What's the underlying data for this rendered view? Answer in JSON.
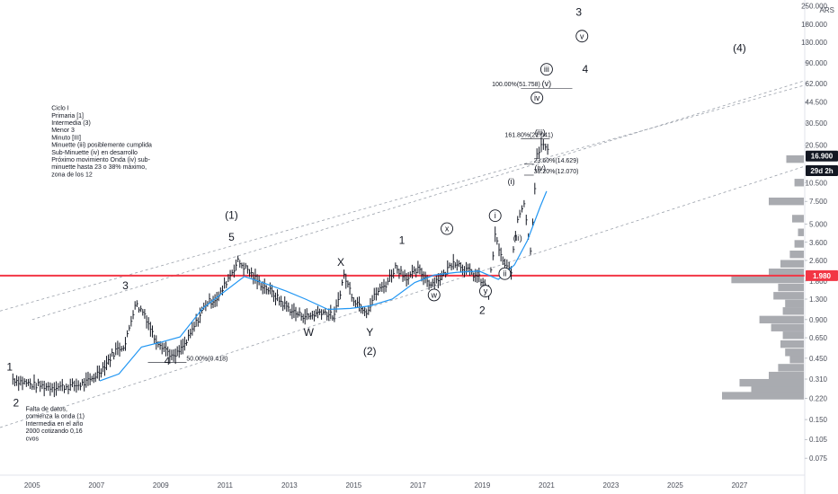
{
  "chart_data": {
    "type": "line",
    "title": "",
    "xlabel": "",
    "ylabel": "",
    "y_scale": "log",
    "xlim": [
      2004.0,
      2029.0
    ],
    "ylim": [
      0.06,
      260
    ],
    "currency": "ARS",
    "x_ticks": [
      "2005",
      "2007",
      "2009",
      "2011",
      "2013",
      "2015",
      "2017",
      "2019",
      "2021",
      "2023",
      "2025",
      "2027"
    ],
    "x_tick_values": [
      2005,
      2007,
      2009,
      2011,
      2013,
      2015,
      2017,
      2019,
      2021,
      2023,
      2025,
      2027
    ],
    "y_ticks": [
      "250.000",
      "180.000",
      "130.000",
      "90.000",
      "62.000",
      "44.500",
      "30.500",
      "20.500",
      "10.500",
      "7.500",
      "5.000",
      "3.600",
      "2.600",
      "1.800",
      "1.300",
      "0.900",
      "0.650",
      "0.450",
      "0.310",
      "0.220",
      "0.150",
      "0.105",
      "0.075"
    ],
    "y_tick_values": [
      250,
      180,
      130,
      90,
      62,
      44.5,
      30.5,
      20.5,
      10.5,
      7.5,
      5.0,
      3.6,
      2.6,
      1.8,
      1.3,
      0.9,
      0.65,
      0.45,
      0.31,
      0.22,
      0.15,
      0.105,
      0.075
    ],
    "price_badge": {
      "label": "16.900",
      "value": 16.9,
      "color": "#131722"
    },
    "countdown_badge": {
      "label": "29d 2h",
      "value": 13.0,
      "color": "#131722"
    },
    "support_line": {
      "label": "1.980",
      "value": 1.98,
      "color": "#f23645"
    },
    "moving_average": [
      {
        "x": 2007.1,
        "y": 0.3
      },
      {
        "x": 2007.7,
        "y": 0.34
      },
      {
        "x": 2008.4,
        "y": 0.55
      },
      {
        "x": 2009.0,
        "y": 0.6
      },
      {
        "x": 2009.6,
        "y": 0.66
      },
      {
        "x": 2010.3,
        "y": 1.1
      },
      {
        "x": 2011.0,
        "y": 1.5
      },
      {
        "x": 2011.6,
        "y": 1.95
      },
      {
        "x": 2012.3,
        "y": 1.7
      },
      {
        "x": 2012.9,
        "y": 1.5
      },
      {
        "x": 2013.5,
        "y": 1.3
      },
      {
        "x": 2014.2,
        "y": 1.08
      },
      {
        "x": 2014.9,
        "y": 1.1
      },
      {
        "x": 2015.5,
        "y": 1.15
      },
      {
        "x": 2016.2,
        "y": 1.3
      },
      {
        "x": 2016.9,
        "y": 1.75
      },
      {
        "x": 2017.5,
        "y": 2.0
      },
      {
        "x": 2018.2,
        "y": 2.1
      },
      {
        "x": 2018.9,
        "y": 2.15
      },
      {
        "x": 2019.5,
        "y": 1.85
      },
      {
        "x": 2020.0,
        "y": 2.4
      },
      {
        "x": 2020.4,
        "y": 3.7
      },
      {
        "x": 2020.8,
        "y": 6.8
      },
      {
        "x": 2021.0,
        "y": 9.0
      }
    ],
    "price_series": [
      {
        "x": 2004.4,
        "y": 0.31
      },
      {
        "x": 2005.0,
        "y": 0.28
      },
      {
        "x": 2005.5,
        "y": 0.27
      },
      {
        "x": 2006.0,
        "y": 0.27
      },
      {
        "x": 2006.5,
        "y": 0.28
      },
      {
        "x": 2006.8,
        "y": 0.3
      },
      {
        "x": 2007.2,
        "y": 0.38
      },
      {
        "x": 2007.6,
        "y": 0.52
      },
      {
        "x": 2007.9,
        "y": 0.58
      },
      {
        "x": 2008.2,
        "y": 1.2
      },
      {
        "x": 2008.5,
        "y": 1.0
      },
      {
        "x": 2008.8,
        "y": 0.65
      },
      {
        "x": 2009.1,
        "y": 0.55
      },
      {
        "x": 2009.4,
        "y": 0.45
      },
      {
        "x": 2009.8,
        "y": 0.6
      },
      {
        "x": 2010.1,
        "y": 0.85
      },
      {
        "x": 2010.4,
        "y": 1.2
      },
      {
        "x": 2010.8,
        "y": 1.35
      },
      {
        "x": 2011.1,
        "y": 1.9
      },
      {
        "x": 2011.4,
        "y": 2.55
      },
      {
        "x": 2011.7,
        "y": 2.2
      },
      {
        "x": 2012.0,
        "y": 1.8
      },
      {
        "x": 2012.4,
        "y": 1.5
      },
      {
        "x": 2012.8,
        "y": 1.2
      },
      {
        "x": 2013.2,
        "y": 1.0
      },
      {
        "x": 2013.6,
        "y": 0.95
      },
      {
        "x": 2014.0,
        "y": 1.05
      },
      {
        "x": 2014.4,
        "y": 0.95
      },
      {
        "x": 2014.7,
        "y": 2.0
      },
      {
        "x": 2015.0,
        "y": 1.3
      },
      {
        "x": 2015.4,
        "y": 1.05
      },
      {
        "x": 2015.7,
        "y": 1.45
      },
      {
        "x": 2016.0,
        "y": 1.7
      },
      {
        "x": 2016.3,
        "y": 2.3
      },
      {
        "x": 2016.7,
        "y": 1.9
      },
      {
        "x": 2017.0,
        "y": 2.2
      },
      {
        "x": 2017.4,
        "y": 1.7
      },
      {
        "x": 2017.8,
        "y": 2.0
      },
      {
        "x": 2018.1,
        "y": 2.6
      },
      {
        "x": 2018.5,
        "y": 2.2
      },
      {
        "x": 2018.9,
        "y": 1.9
      },
      {
        "x": 2019.2,
        "y": 1.5
      },
      {
        "x": 2019.4,
        "y": 4.0
      },
      {
        "x": 2019.7,
        "y": 2.3
      },
      {
        "x": 2019.9,
        "y": 2.2
      },
      {
        "x": 2020.1,
        "y": 5.5
      },
      {
        "x": 2020.3,
        "y": 7.5
      },
      {
        "x": 2020.5,
        "y": 3.0
      },
      {
        "x": 2020.7,
        "y": 18.0
      },
      {
        "x": 2020.9,
        "y": 21.0
      },
      {
        "x": 2021.1,
        "y": 16.9
      }
    ],
    "channels": [
      {
        "x1": 2004.0,
        "y1": 0.13,
        "x2": 2029.0,
        "y2": 14.0
      },
      {
        "x1": 2004.0,
        "y1": 1.05,
        "x2": 2029.0,
        "y2": 60.0
      },
      {
        "x1": 2005.0,
        "y1": 0.9,
        "x2": 2029.0,
        "y2": 65.0
      }
    ],
    "wave_labels": [
      {
        "text": "1",
        "x": 2004.3,
        "y": 0.36,
        "size": "lg"
      },
      {
        "text": "2",
        "x": 2004.5,
        "y": 0.19,
        "size": "lg"
      },
      {
        "text": "3",
        "x": 2007.9,
        "y": 1.55,
        "size": "lg"
      },
      {
        "text": "4",
        "x": 2009.2,
        "y": 0.4,
        "size": "lg"
      },
      {
        "text": "(1)",
        "x": 2011.2,
        "y": 5.5,
        "size": "lg"
      },
      {
        "text": "5",
        "x": 2011.2,
        "y": 3.7,
        "size": "lg"
      },
      {
        "text": "X",
        "x": 2014.6,
        "y": 2.35,
        "size": "lg"
      },
      {
        "text": "W",
        "x": 2013.6,
        "y": 0.67,
        "size": "lg"
      },
      {
        "text": "Y",
        "x": 2015.5,
        "y": 0.67,
        "size": "lg"
      },
      {
        "text": "(2)",
        "x": 2015.5,
        "y": 0.48,
        "size": "lg"
      },
      {
        "text": "1",
        "x": 2016.5,
        "y": 3.5,
        "size": "lg"
      },
      {
        "text": "2",
        "x": 2019.0,
        "y": 1.0,
        "size": "lg"
      },
      {
        "text": "3",
        "x": 2022.0,
        "y": 210,
        "size": "lg"
      },
      {
        "text": "4",
        "x": 2022.2,
        "y": 75,
        "size": "lg"
      },
      {
        "text": "(4)",
        "x": 2027.0,
        "y": 110,
        "size": "lg"
      },
      {
        "text": "(iii)",
        "x": 2020.8,
        "y": 24.5,
        "size": "sm"
      },
      {
        "text": "(iv)",
        "x": 2020.8,
        "y": 13.0,
        "size": "sm"
      },
      {
        "text": "(i)",
        "x": 2019.9,
        "y": 10.2,
        "size": "sm"
      },
      {
        "text": "(ii)",
        "x": 2020.1,
        "y": 3.7,
        "size": "sm"
      },
      {
        "text": "(v)",
        "x": 2021.0,
        "y": 59,
        "size": "sm"
      }
    ],
    "circled_labels": [
      {
        "text": "x",
        "x": 2017.9,
        "y": 4.6
      },
      {
        "text": "w",
        "x": 2017.5,
        "y": 1.4
      },
      {
        "text": "y",
        "x": 2019.1,
        "y": 1.5
      },
      {
        "text": "i",
        "x": 2019.4,
        "y": 5.8
      },
      {
        "text": "ii",
        "x": 2019.7,
        "y": 2.05
      },
      {
        "text": "iii",
        "x": 2021.0,
        "y": 80
      },
      {
        "text": "iv",
        "x": 2020.7,
        "y": 48
      },
      {
        "text": "v",
        "x": 2022.1,
        "y": 145
      }
    ],
    "fibonacci_levels": [
      {
        "label": "161.80%(21.041)",
        "x": 2019.7,
        "y": 23.0,
        "line_x1": 2020.2,
        "line_x2": 2021.1
      },
      {
        "label": "100.00%(51.758)",
        "x": 2019.3,
        "y": 57.0,
        "line_x1": 2020.2,
        "line_x2": 2021.8
      },
      {
        "label": "23.60%(14.629)",
        "x": 2020.6,
        "y": 14.6,
        "line_x1": 2020.3,
        "line_x2": 2020.6
      },
      {
        "label": "38.20%(12.070)",
        "x": 2020.6,
        "y": 12.0,
        "line_x1": 2020.3,
        "line_x2": 2020.6
      },
      {
        "label": "50.00%(0.418)",
        "x": 2009.8,
        "y": 0.418,
        "line_x1": 2008.6,
        "line_x2": 2009.8
      }
    ],
    "notes": [
      {
        "lines": [
          "Ciclo I",
          "Primaria [1]",
          "Intermedia (3)",
          "Menor 3",
          "Minuto [III]",
          "Minuette (iii) posiblemente cumplida",
          "Sub-Minuette (iv) en desarrollo",
          "Próximo movimiento Onda (iv) sub-",
          "minuette hasta 23 o 38% máximo,",
          "zona de los 12"
        ],
        "x": 2005.6,
        "y": 38.5
      },
      {
        "lines": [
          "Falta de datos,",
          "comienza la onda (1)",
          "Intermedia en el año",
          "2000 cotizando 0,16",
          "cvos"
        ],
        "x": 2004.8,
        "y": 0.175
      }
    ],
    "volume_profile": [
      {
        "y": 0.23,
        "w": 0.7
      },
      {
        "y": 0.26,
        "w": 0.45
      },
      {
        "y": 0.29,
        "w": 0.55
      },
      {
        "y": 0.33,
        "w": 0.3
      },
      {
        "y": 0.38,
        "w": 0.22
      },
      {
        "y": 0.44,
        "w": 0.12
      },
      {
        "y": 0.5,
        "w": 0.16
      },
      {
        "y": 0.58,
        "w": 0.2
      },
      {
        "y": 0.68,
        "w": 0.18
      },
      {
        "y": 0.78,
        "w": 0.28
      },
      {
        "y": 0.9,
        "w": 0.38
      },
      {
        "y": 1.05,
        "w": 0.18
      },
      {
        "y": 1.2,
        "w": 0.16
      },
      {
        "y": 1.38,
        "w": 0.26
      },
      {
        "y": 1.6,
        "w": 0.22
      },
      {
        "y": 1.85,
        "w": 0.62
      },
      {
        "y": 2.1,
        "w": 0.3
      },
      {
        "y": 2.45,
        "w": 0.2
      },
      {
        "y": 2.9,
        "w": 0.12
      },
      {
        "y": 3.5,
        "w": 0.08
      },
      {
        "y": 4.3,
        "w": 0.05
      },
      {
        "y": 5.5,
        "w": 0.1
      },
      {
        "y": 7.5,
        "w": 0.3
      },
      {
        "y": 10.5,
        "w": 0.08
      },
      {
        "y": 16.0,
        "w": 0.15
      }
    ]
  }
}
